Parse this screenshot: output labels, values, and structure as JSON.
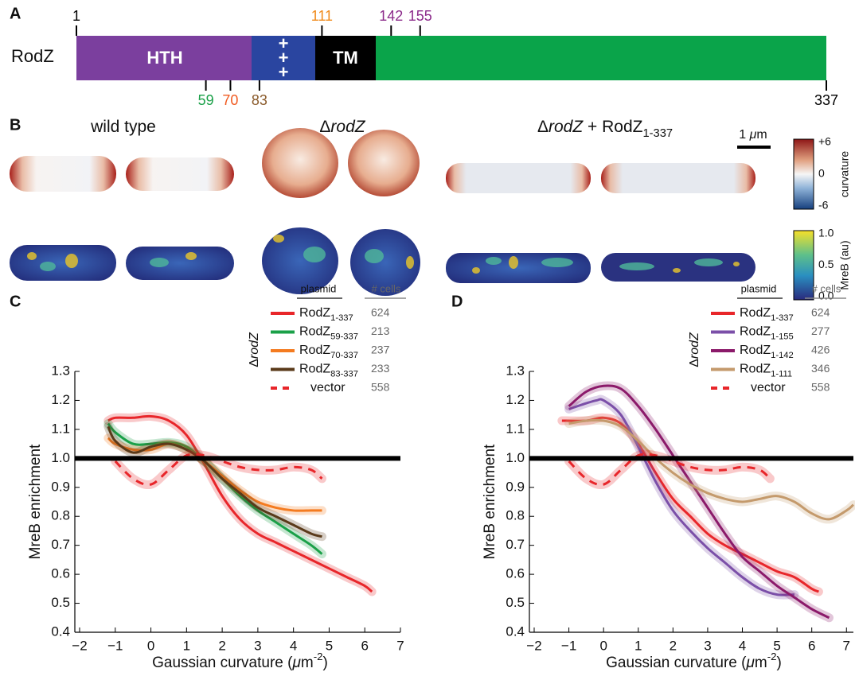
{
  "panel_a": {
    "label": "A",
    "protein": "RodZ",
    "domains": [
      {
        "label": "HTH"
      },
      {
        "label": "+++"
      },
      {
        "label": "TM"
      }
    ],
    "markers": [
      {
        "value": 1,
        "color": "#000000",
        "side": "top"
      },
      {
        "value": 111,
        "color": "#f08a1a",
        "side": "top"
      },
      {
        "value": 142,
        "color": "#8b2a8a",
        "side": "top"
      },
      {
        "value": 155,
        "color": "#8b2a8a",
        "side": "top"
      },
      {
        "value": 59,
        "color": "#1aa048",
        "side": "bottom"
      },
      {
        "value": 70,
        "color": "#f05a20",
        "side": "bottom"
      },
      {
        "value": 83,
        "color": "#8a5a2a",
        "side": "bottom"
      },
      {
        "value": 337,
        "color": "#000000",
        "side": "bottom"
      }
    ]
  },
  "panel_b": {
    "label": "B",
    "titles": [
      [
        {
          "text": "wild type"
        }
      ],
      [
        {
          "text": "Δ"
        },
        {
          "text": "rodZ",
          "style": "italic"
        }
      ],
      [
        {
          "text": "Δ"
        },
        {
          "text": "rodZ",
          "style": "italic"
        },
        {
          "text": " + RodZ"
        },
        {
          "text": "1-337",
          "style": "sub"
        }
      ]
    ],
    "scale_bar": [
      {
        "text": "1 "
      },
      {
        "text": "μ",
        "style": "italic"
      },
      {
        "text": "m"
      }
    ],
    "colorbars": [
      {
        "ticks": [
          "+6",
          "0",
          "-6"
        ],
        "label": "curvature"
      },
      {
        "ticks": [
          "1.0",
          "0.5",
          "0.0"
        ],
        "label": "MreB (au)"
      }
    ]
  },
  "chart_data": [
    {
      "type": "line",
      "panel_label": "C",
      "ylabel": "MreB enrichment",
      "xlabel": [
        {
          "text": "Gaussian curvature ("
        },
        {
          "text": "μ",
          "style": "italic"
        },
        {
          "text": "m"
        },
        {
          "text": "-2",
          "style": "sup"
        },
        {
          "text": ")"
        }
      ],
      "legend_title": [
        {
          "text": "Δ"
        },
        {
          "text": "rodZ",
          "style": "italic"
        }
      ],
      "legend_headers": [
        "plasmid",
        "# cells"
      ],
      "xlim": [
        -2,
        7
      ],
      "ylim": [
        0.4,
        1.3
      ],
      "xticks": [
        {
          "value": -2,
          "label": "−2"
        },
        {
          "value": -1,
          "label": "−1"
        },
        0,
        1,
        2,
        3,
        4,
        5,
        6,
        7
      ],
      "yticks": [
        0.4,
        0.5,
        0.6,
        0.7,
        0.8,
        0.9,
        {
          "value": 1,
          "label": "1.0"
        },
        1.1,
        1.2,
        1.3
      ],
      "hline": 1,
      "series": [
        {
          "name": "RodZ1-337",
          "color": "#e8262a",
          "style": "solid",
          "cells": 624,
          "x": [
            -1.2,
            -1,
            -0.5,
            0,
            0.5,
            1,
            1.5,
            2,
            2.5,
            3,
            3.5,
            4,
            4.5,
            5,
            5.5,
            6,
            6.2
          ],
          "values": [
            1.13,
            1.14,
            1.14,
            1.145,
            1.13,
            1.08,
            0.98,
            0.87,
            0.79,
            0.74,
            0.71,
            0.68,
            0.65,
            0.62,
            0.59,
            0.56,
            0.54
          ]
        },
        {
          "name": "RodZ59-337",
          "color": "#1aa048",
          "style": "solid",
          "cells": 213,
          "x": [
            -1.2,
            -1,
            -0.5,
            0,
            0.5,
            1,
            1.5,
            2,
            2.5,
            3,
            3.5,
            4,
            4.5,
            4.8
          ],
          "values": [
            1.12,
            1.09,
            1.05,
            1.05,
            1.055,
            1.04,
            0.99,
            0.93,
            0.87,
            0.82,
            0.78,
            0.74,
            0.7,
            0.67
          ]
        },
        {
          "name": "RodZ70-337",
          "color": "#f47b20",
          "style": "solid",
          "cells": 237,
          "x": [
            -1.2,
            -1,
            -0.5,
            0,
            0.5,
            1,
            1.5,
            2,
            2.5,
            3,
            3.5,
            4,
            4.5,
            4.8
          ],
          "values": [
            1.07,
            1.05,
            1.03,
            1.03,
            1.05,
            1.03,
            0.99,
            0.94,
            0.89,
            0.85,
            0.83,
            0.82,
            0.82,
            0.82
          ]
        },
        {
          "name": "RodZ83-337",
          "color": "#5a3a1a",
          "style": "solid",
          "cells": 233,
          "x": [
            -1.2,
            -1,
            -0.5,
            0,
            0.5,
            1,
            1.5,
            2,
            2.5,
            3,
            3.5,
            4,
            4.5,
            4.8
          ],
          "values": [
            1.11,
            1.06,
            1.02,
            1.04,
            1.05,
            1.03,
            0.99,
            0.93,
            0.88,
            0.83,
            0.8,
            0.77,
            0.74,
            0.73
          ]
        },
        {
          "name": "vector",
          "color": "#e8262a",
          "style": "dashed",
          "cells": 558,
          "x": [
            -1,
            -0.5,
            0,
            0.5,
            1,
            1.5,
            2,
            2.5,
            3,
            3.5,
            4,
            4.5,
            4.8
          ],
          "values": [
            0.99,
            0.93,
            0.91,
            0.96,
            1.01,
            1.01,
            0.99,
            0.97,
            0.96,
            0.96,
            0.97,
            0.96,
            0.93
          ]
        }
      ]
    },
    {
      "type": "line",
      "panel_label": "D",
      "ylabel": "MreB enrichment",
      "xlabel": [
        {
          "text": "Gaussian curvature ("
        },
        {
          "text": "μ",
          "style": "italic"
        },
        {
          "text": "m"
        },
        {
          "text": "-2",
          "style": "sup"
        },
        {
          "text": ")"
        }
      ],
      "legend_title": [
        {
          "text": "Δ"
        },
        {
          "text": "rodZ",
          "style": "italic"
        }
      ],
      "legend_headers": [
        "plasmid",
        "# cells"
      ],
      "xlim": [
        -2,
        7.2
      ],
      "ylim": [
        0.4,
        1.3
      ],
      "xticks": [
        {
          "value": -2,
          "label": "−2"
        },
        {
          "value": -1,
          "label": "−1"
        },
        0,
        1,
        2,
        3,
        4,
        5,
        6,
        7
      ],
      "yticks": [
        0.4,
        0.5,
        0.6,
        0.7,
        0.8,
        0.9,
        {
          "value": 1,
          "label": "1.0"
        },
        1.1,
        1.2,
        1.3
      ],
      "hline": 1,
      "series": [
        {
          "name": "RodZ1-337",
          "color": "#e8262a",
          "style": "solid",
          "cells": 624,
          "x": [
            -1.2,
            -0.5,
            0,
            0.5,
            1,
            1.5,
            2,
            2.5,
            3,
            3.5,
            4,
            4.5,
            5,
            5.5,
            6,
            6.2
          ],
          "values": [
            1.13,
            1.13,
            1.14,
            1.12,
            1.05,
            0.95,
            0.86,
            0.8,
            0.74,
            0.7,
            0.67,
            0.64,
            0.61,
            0.59,
            0.55,
            0.54
          ]
        },
        {
          "name": "RodZ1-155",
          "color": "#7b4fa8",
          "style": "solid",
          "cells": 277,
          "x": [
            -1,
            -0.5,
            -0.2,
            0,
            0.5,
            1,
            1.5,
            2,
            2.5,
            3,
            3.5,
            4,
            4.5,
            5,
            5.5
          ],
          "values": [
            1.17,
            1.19,
            1.2,
            1.2,
            1.15,
            1.04,
            0.92,
            0.82,
            0.75,
            0.69,
            0.64,
            0.59,
            0.55,
            0.53,
            0.53
          ]
        },
        {
          "name": "RodZ1-142",
          "color": "#8b1a6a",
          "style": "solid",
          "cells": 426,
          "x": [
            -1,
            -0.5,
            0,
            0.5,
            1,
            1.5,
            2,
            2.5,
            3,
            3.5,
            4,
            4.5,
            5,
            5.5,
            6,
            6.5
          ],
          "values": [
            1.18,
            1.23,
            1.25,
            1.24,
            1.18,
            1.1,
            1.01,
            0.92,
            0.83,
            0.74,
            0.66,
            0.61,
            0.56,
            0.52,
            0.48,
            0.45
          ]
        },
        {
          "name": "RodZ1-111",
          "color": "#c49a6c",
          "style": "solid",
          "cells": 346,
          "x": [
            -1,
            -0.5,
            0,
            0.5,
            1,
            1.5,
            2,
            2.5,
            3,
            3.5,
            4,
            4.5,
            5,
            5.5,
            6,
            6.5,
            7,
            7.2
          ],
          "values": [
            1.12,
            1.13,
            1.13,
            1.11,
            1.06,
            1.0,
            0.95,
            0.91,
            0.88,
            0.86,
            0.85,
            0.86,
            0.87,
            0.85,
            0.81,
            0.79,
            0.82,
            0.84
          ]
        },
        {
          "name": "vector",
          "color": "#e8262a",
          "style": "dashed",
          "cells": 558,
          "x": [
            -1,
            -0.5,
            0,
            0.5,
            1,
            1.5,
            2,
            2.5,
            3,
            3.5,
            4,
            4.5,
            4.8
          ],
          "values": [
            0.99,
            0.93,
            0.91,
            0.96,
            1.01,
            1.01,
            0.99,
            0.97,
            0.96,
            0.96,
            0.97,
            0.96,
            0.93
          ]
        }
      ]
    }
  ]
}
